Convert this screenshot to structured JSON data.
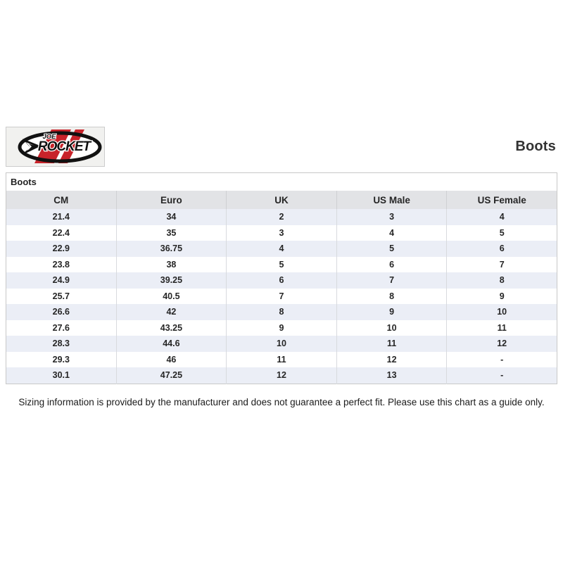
{
  "header": {
    "title": "Boots"
  },
  "logo": {
    "name": "joe-rocket-logo",
    "line1": "JOE",
    "line2": "ROCKET",
    "box_bg": "#f1f1ef",
    "box_border": "#cccccc",
    "stripe_red": "#c8232a",
    "ink": "#111111"
  },
  "table": {
    "caption": "Boots",
    "columns": [
      "CM",
      "Euro",
      "UK",
      "US Male",
      "US Female"
    ],
    "rows": [
      [
        "21.4",
        "34",
        "2",
        "3",
        "4"
      ],
      [
        "22.4",
        "35",
        "3",
        "4",
        "5"
      ],
      [
        "22.9",
        "36.75",
        "4",
        "5",
        "6"
      ],
      [
        "23.8",
        "38",
        "5",
        "6",
        "7"
      ],
      [
        "24.9",
        "39.25",
        "6",
        "7",
        "8"
      ],
      [
        "25.7",
        "40.5",
        "7",
        "8",
        "9"
      ],
      [
        "26.6",
        "42",
        "8",
        "9",
        "10"
      ],
      [
        "27.6",
        "43.25",
        "9",
        "10",
        "11"
      ],
      [
        "28.3",
        "44.6",
        "10",
        "11",
        "12"
      ],
      [
        "29.3",
        "46",
        "11",
        "12",
        "-"
      ],
      [
        "30.1",
        "47.25",
        "12",
        "13",
        "-"
      ]
    ],
    "header_bg": "#e2e3e6",
    "stripe_bg": "#ebeef6"
  },
  "footer": {
    "disclaimer": "Sizing information is provided by the manufacturer and does not guarantee a perfect fit. Please use this chart as a guide only."
  }
}
